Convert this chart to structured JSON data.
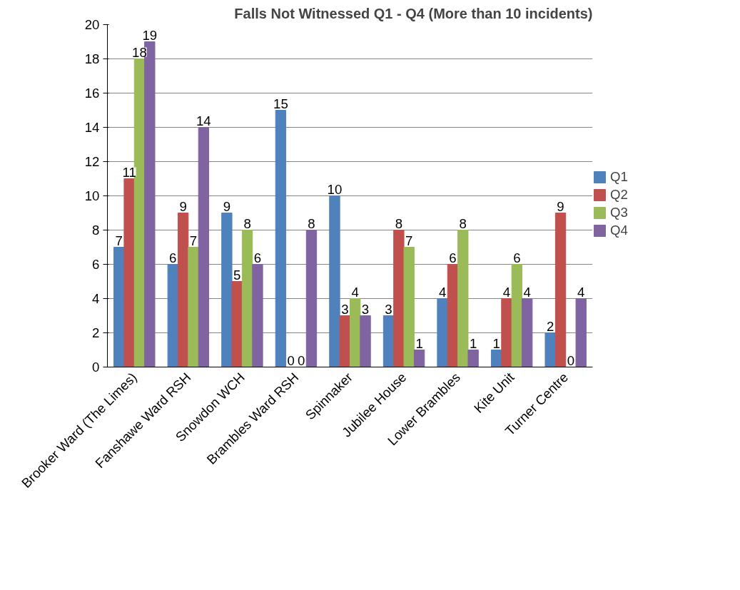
{
  "chart_data": {
    "type": "bar",
    "title": "Falls Not Witnessed Q1 - Q4 (More than 10 incidents)",
    "categories": [
      "Brooker Ward (The Limes)",
      "Fanshawe Ward RSH",
      "Snowdon WCH",
      "Brambles Ward RSH",
      "Spinnaker",
      "Jubilee House",
      "Lower Brambles",
      "Kite Unit",
      "Turner Centre"
    ],
    "series": [
      {
        "name": "Q1",
        "color": "#4f81bd",
        "values": [
          7,
          6,
          9,
          15,
          10,
          3,
          4,
          1,
          2
        ]
      },
      {
        "name": "Q2",
        "color": "#c0504d",
        "values": [
          11,
          9,
          5,
          0,
          3,
          8,
          6,
          4,
          9
        ]
      },
      {
        "name": "Q3",
        "color": "#9bbb59",
        "values": [
          18,
          7,
          8,
          0,
          4,
          7,
          8,
          6,
          0
        ]
      },
      {
        "name": "Q4",
        "color": "#8064a2",
        "values": [
          19,
          14,
          6,
          8,
          3,
          1,
          1,
          4,
          4
        ]
      }
    ],
    "ylim": [
      0,
      20
    ],
    "yticks": [
      0,
      2,
      4,
      6,
      8,
      10,
      12,
      14,
      16,
      18,
      20
    ],
    "grid": "y",
    "legend": "right",
    "data_labels": true
  }
}
